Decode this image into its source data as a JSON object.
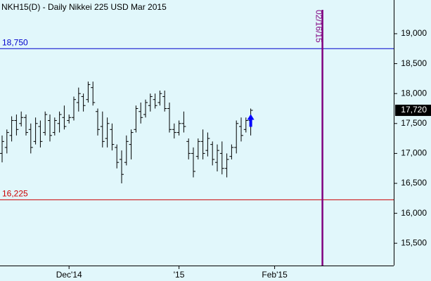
{
  "chart_data": {
    "type": "ohlc",
    "title": "NKH15(D) - Daily  Nikkei 225 USD Mar 2015",
    "color": "#000000",
    "categories": [
      null,
      null,
      null,
      null,
      null,
      null,
      null,
      null,
      null,
      null,
      null,
      null,
      null,
      null,
      "Dec'14",
      null,
      null,
      null,
      null,
      null,
      null,
      null,
      null,
      null,
      null,
      null,
      null,
      null,
      null,
      null,
      null,
      null,
      null,
      null,
      null,
      null,
      null,
      "'15",
      null,
      null,
      null,
      null,
      null,
      null,
      null,
      null,
      null,
      null,
      null,
      null,
      null,
      null,
      null,
      null,
      null,
      null,
      null,
      "Feb'15",
      null,
      null,
      null,
      null,
      null,
      null,
      null,
      null,
      null,
      null,
      null,
      null,
      null,
      null,
      null,
      null,
      null,
      null,
      null,
      null,
      null,
      null,
      null,
      null
    ],
    "open": [
      17000,
      17100,
      17300,
      17550,
      17500,
      17600,
      17400,
      17200,
      17450,
      17350,
      17550,
      17350,
      17500,
      17600,
      17550,
      17600,
      17850,
      17950,
      17900,
      18100,
      17700,
      17450,
      17250,
      17400,
      17100,
      16900,
      16850,
      17150,
      17400,
      17700,
      17650,
      17800,
      17900,
      17850,
      17950,
      17750,
      17400,
      17350,
      17500,
      17200,
      17000,
      16950,
      17200,
      17050,
      17150,
      16850,
      17000,
      16750,
      16950,
      17100,
      17450,
      17400,
      17550,
      null,
      null,
      null,
      null,
      null,
      null,
      null,
      null,
      null,
      null,
      null,
      null,
      null,
      null,
      null,
      null,
      null,
      null,
      null,
      null,
      null,
      null,
      null,
      null,
      null,
      null,
      null,
      null,
      null
    ],
    "high": [
      17300,
      17400,
      17620,
      17650,
      17700,
      17650,
      17500,
      17600,
      17550,
      17700,
      17650,
      17600,
      17700,
      17800,
      17650,
      17950,
      18100,
      18000,
      18200,
      18200,
      17750,
      17700,
      17600,
      17500,
      17150,
      17050,
      17300,
      17400,
      17800,
      17850,
      17900,
      18000,
      18000,
      18050,
      18050,
      17850,
      17500,
      17550,
      17700,
      17250,
      17100,
      17250,
      17400,
      17350,
      17200,
      17150,
      17200,
      17000,
      17150,
      17550,
      17600,
      17600,
      17750,
      null,
      null,
      null,
      null,
      null,
      null,
      null,
      null,
      null,
      null,
      null,
      null,
      null,
      null,
      null,
      null,
      null,
      null,
      null,
      null,
      null,
      null,
      null,
      null,
      null,
      null,
      null,
      null,
      null
    ],
    "low": [
      16850,
      17000,
      17200,
      17300,
      17450,
      17300,
      17000,
      17150,
      17100,
      17300,
      17200,
      17300,
      17350,
      17400,
      17500,
      17550,
      17700,
      17700,
      17850,
      17800,
      17300,
      17100,
      17100,
      17050,
      16750,
      16500,
      16800,
      16900,
      17350,
      17500,
      17600,
      17700,
      17750,
      17800,
      17700,
      17350,
      17250,
      17300,
      17350,
      16900,
      16600,
      16900,
      16900,
      16950,
      16800,
      16700,
      16650,
      16600,
      16900,
      17000,
      17200,
      17350,
      17300,
      null,
      null,
      null,
      null,
      null,
      null,
      null,
      null,
      null,
      null,
      null,
      null,
      null,
      null,
      null,
      null,
      null,
      null,
      null,
      null,
      null,
      null,
      null,
      null,
      null,
      null,
      null,
      null,
      null
    ],
    "close": [
      17200,
      17350,
      17550,
      17400,
      17600,
      17350,
      17100,
      17500,
      17200,
      17650,
      17300,
      17550,
      17650,
      17450,
      17600,
      17900,
      18000,
      17800,
      18150,
      17850,
      17400,
      17200,
      17500,
      17150,
      16850,
      16650,
      17200,
      17350,
      17750,
      17600,
      17850,
      17950,
      17800,
      18000,
      17750,
      17400,
      17350,
      17500,
      17450,
      17000,
      16700,
      17200,
      17000,
      17250,
      16900,
      17050,
      16750,
      16900,
      17100,
      17500,
      17300,
      17550,
      17720,
      null,
      null,
      null,
      null,
      null,
      null,
      null,
      null,
      null,
      null,
      null,
      null,
      null,
      null,
      null,
      null,
      null,
      null,
      null,
      null,
      null,
      null,
      null,
      null,
      null,
      null,
      null,
      null,
      null
    ],
    "ylim": [
      15127,
      19563
    ],
    "yticks": [
      {
        "value": 15500,
        "label": "15,500"
      },
      {
        "value": 16000,
        "label": "16,000"
      },
      {
        "value": 16500,
        "label": "16,500"
      },
      {
        "value": 17000,
        "label": "17,000"
      },
      {
        "value": 17500,
        "label": "17,500"
      },
      {
        "value": 18000,
        "label": "18,000"
      },
      {
        "value": 18500,
        "label": "18,500"
      },
      {
        "value": 19000,
        "label": "19,000"
      }
    ],
    "last_price": {
      "value": 17720,
      "label": "17,720"
    },
    "levels": [
      {
        "value": 18750,
        "label": "18,750",
        "color": "#0000cc"
      },
      {
        "value": 16225,
        "label": "16,225",
        "color": "#cc0000"
      }
    ],
    "marker": {
      "label": "02/16/15",
      "color": "#800080"
    }
  }
}
